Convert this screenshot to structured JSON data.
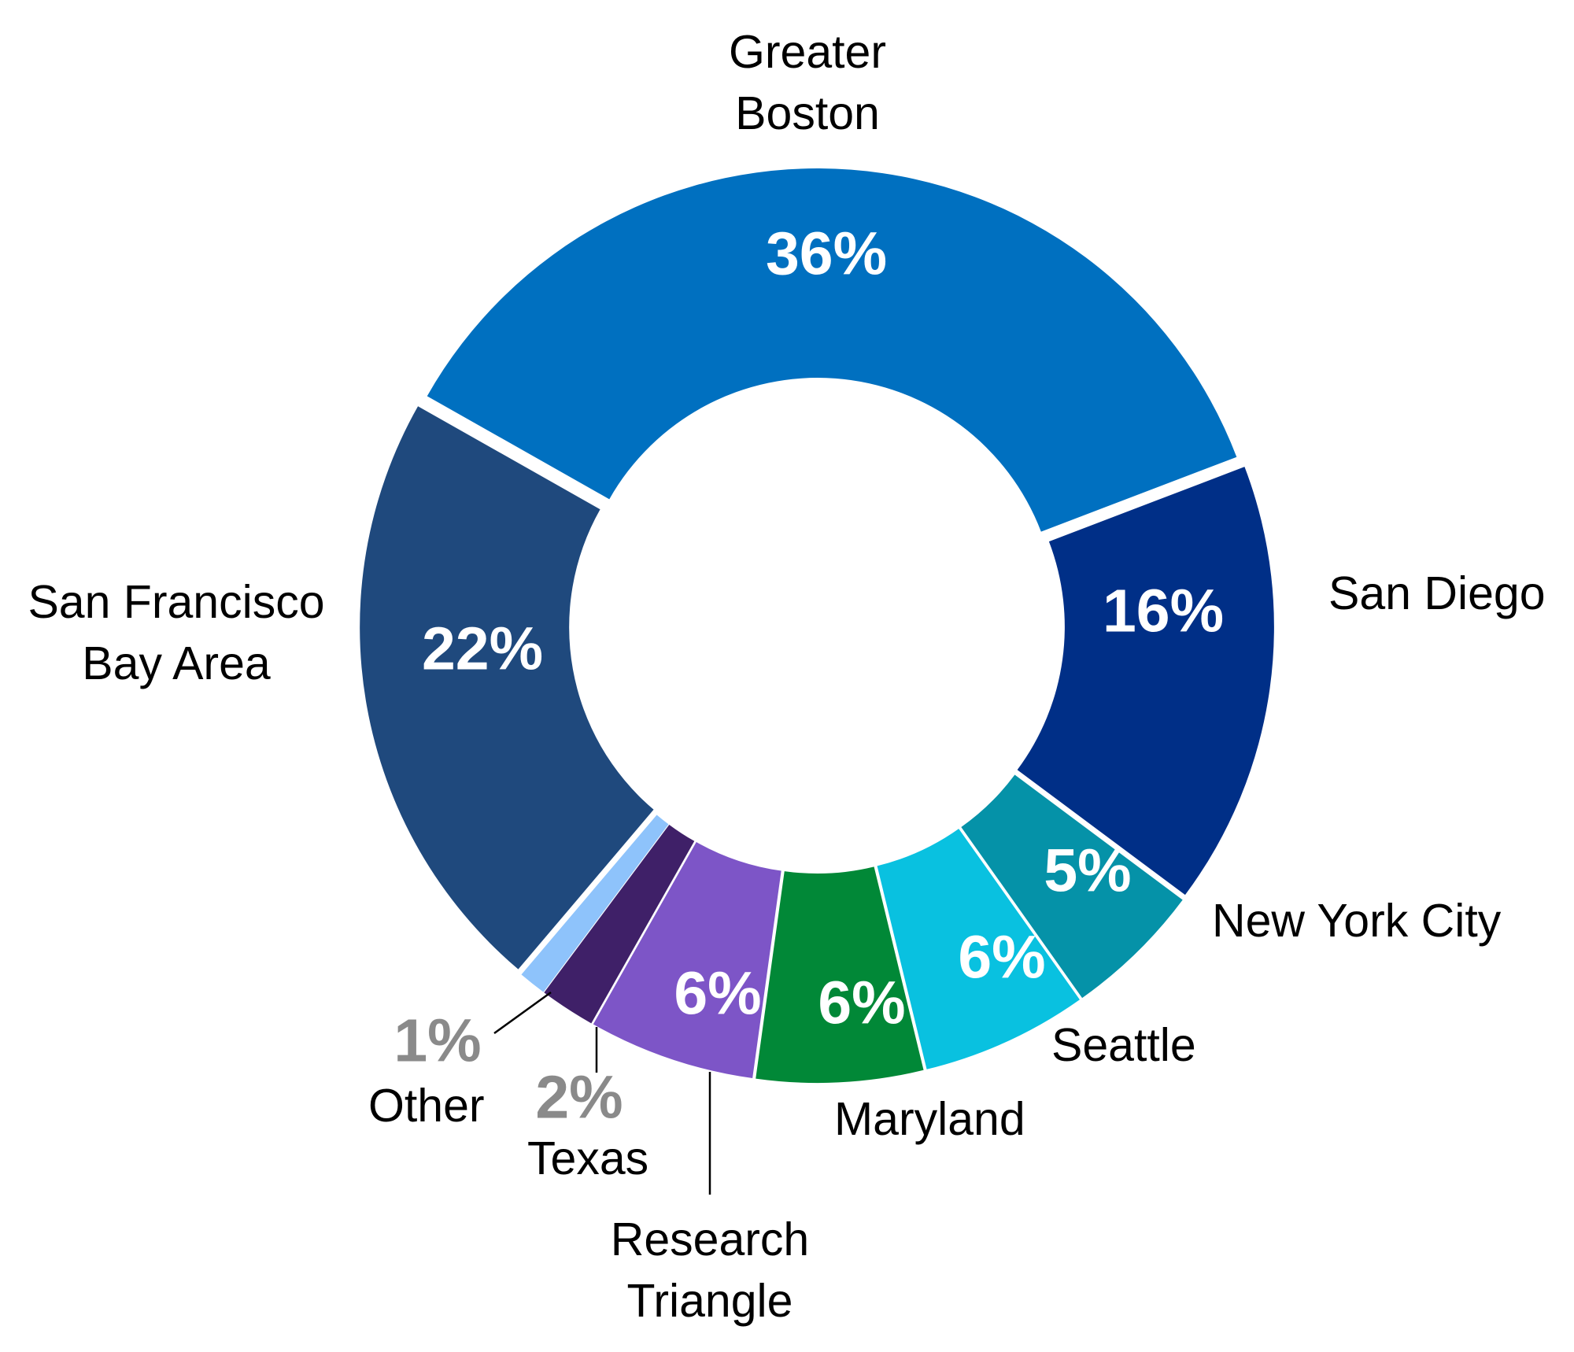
{
  "chart_data": {
    "type": "pie",
    "variant": "donut",
    "title": "",
    "categories": [
      "Greater Boston",
      "San Diego",
      "New York City",
      "Seattle",
      "Maryland",
      "Research Triangle",
      "Texas",
      "Other",
      "San Francisco Bay Area"
    ],
    "values": [
      36,
      16,
      5,
      6,
      6,
      6,
      2,
      1,
      22
    ],
    "data_labels": [
      "36%",
      "16%",
      "5%",
      "6%",
      "6%",
      "6%",
      "2%",
      "1%",
      "22%"
    ],
    "label_lines": [
      [
        "Greater",
        "Boston"
      ],
      [
        "San Diego"
      ],
      [
        "New York City"
      ],
      [
        "Seattle"
      ],
      [
        "Maryland"
      ],
      [
        "Research",
        "Triangle"
      ],
      [
        "Texas"
      ],
      [
        "Other"
      ],
      [
        "San Francisco",
        "Bay Area"
      ]
    ],
    "colors": [
      "#0070C0",
      "#002F87",
      "#0592A8",
      "#09C1E0",
      "#018837",
      "#7D55C7",
      "#3F2068",
      "#8EC3FB",
      "#1F497D"
    ],
    "legend": "none (direct labels)"
  }
}
